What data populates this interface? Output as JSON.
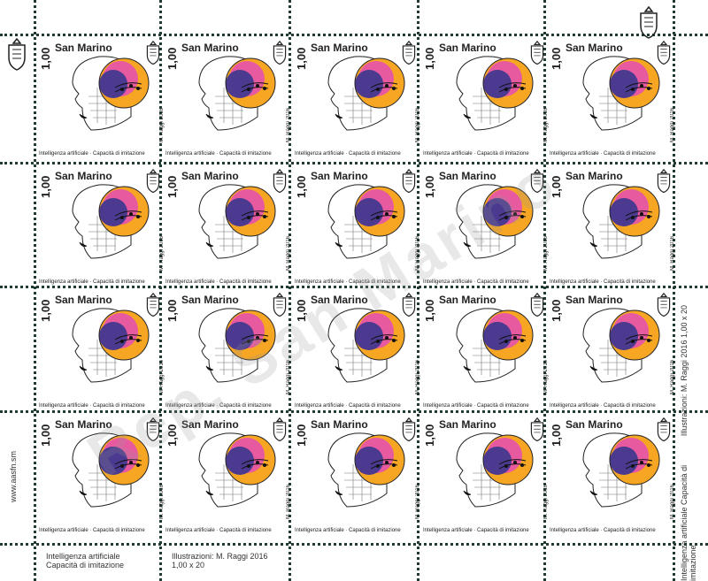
{
  "stamp": {
    "denomination": "1,00",
    "country": "San Marino",
    "caption": "Intelligenza artificiale · Capacità di imitazione",
    "artist": "M. Raggi 2016"
  },
  "margins": {
    "bottom_left_line1": "Intelligenza artificiale",
    "bottom_left_line2": "Capacità di imitazione",
    "bottom_center_line1": "Illustrazioni: M. Raggi 2016",
    "bottom_center_line2": "1,00 x 20",
    "left_vertical": "www.aasfn.sm",
    "right_vertical_1a": "Illustrazioni: M. Raggi 2016",
    "right_vertical_1b": "1,00 x 20",
    "right_vertical_2a": "Intelligenza artificiale",
    "right_vertical_2b": "Capacità di imitazione"
  },
  "watermark": "Rep. San Marino",
  "colors": {
    "perforation": "#1f3b33",
    "purple": "#4b3a8f",
    "pink": "#e85aa0",
    "orange": "#f6a623",
    "yellow": "#f7d44c"
  },
  "icons": [
    "seal-icon",
    "face-outline-icon",
    "music-notes-icon"
  ]
}
